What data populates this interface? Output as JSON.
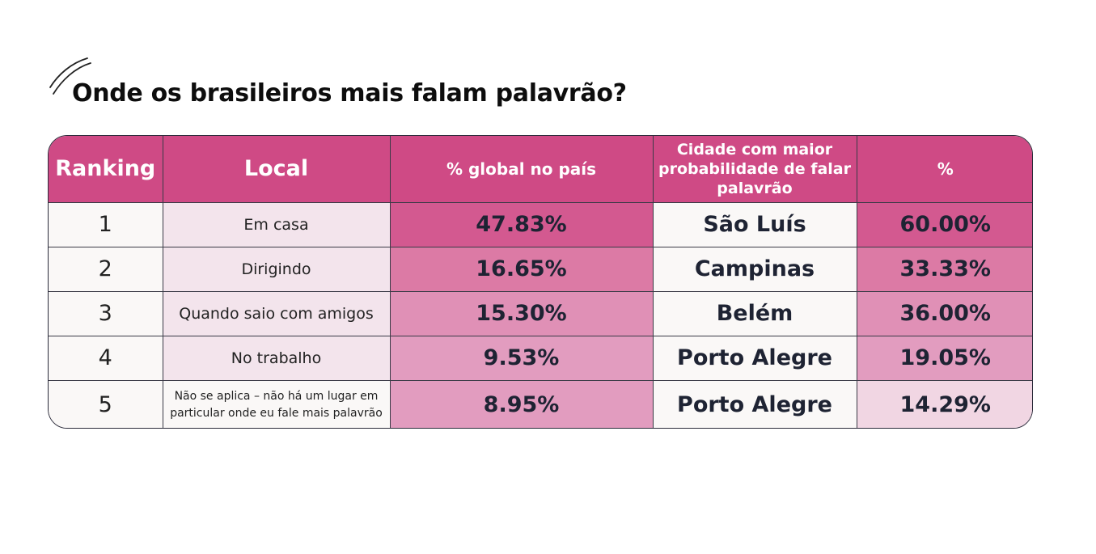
{
  "title": "Onde os brasileiros mais falam palavrão?",
  "colors": {
    "header_bg": "#cf4a85",
    "header_text": "#ffffff",
    "body_text": "#1e2333",
    "neutral_cell": "#faf8f7",
    "local_highlight": "#f3e4ec"
  },
  "table": {
    "headers": {
      "ranking": "Ranking",
      "local": "Local",
      "global_pct": "% global no país",
      "city": "Cidade com maior probabilidade de falar palavrão",
      "city_pct": "%"
    },
    "rows": [
      {
        "rank": "1",
        "local": "Em casa",
        "global_pct": "47.83%",
        "city": "São Luís",
        "city_pct": "60.00%",
        "global_pct_color": "#d35990",
        "city_pct_color": "#d35990",
        "local_color": "#f3e4ec"
      },
      {
        "rank": "2",
        "local": "Dirigindo",
        "global_pct": "16.65%",
        "city": "Campinas",
        "city_pct": "33.33%",
        "global_pct_color": "#dc7aa5",
        "city_pct_color": "#dc7aa5",
        "local_color": "#f3e4ec"
      },
      {
        "rank": "3",
        "local": "Quando saio com amigos",
        "global_pct": "15.30%",
        "city": "Belém",
        "city_pct": "36.00%",
        "global_pct_color": "#e090b6",
        "city_pct_color": "#e090b6",
        "local_color": "#f3e4ec"
      },
      {
        "rank": "4",
        "local": "No trabalho",
        "global_pct": "9.53%",
        "city": "Porto Alegre",
        "city_pct": "19.05%",
        "global_pct_color": "#e29cbf",
        "city_pct_color": "#e29cbf",
        "local_color": "#f3e4ec"
      },
      {
        "rank": "5",
        "local": "Não se aplica – não há um lugar em particular onde eu fale mais palavrão",
        "global_pct": "8.95%",
        "city": "Porto Alegre",
        "city_pct": "14.29%",
        "global_pct_color": "#e29cbf",
        "city_pct_color": "#f1d6e3",
        "local_color": "#faf8f7"
      }
    ]
  }
}
